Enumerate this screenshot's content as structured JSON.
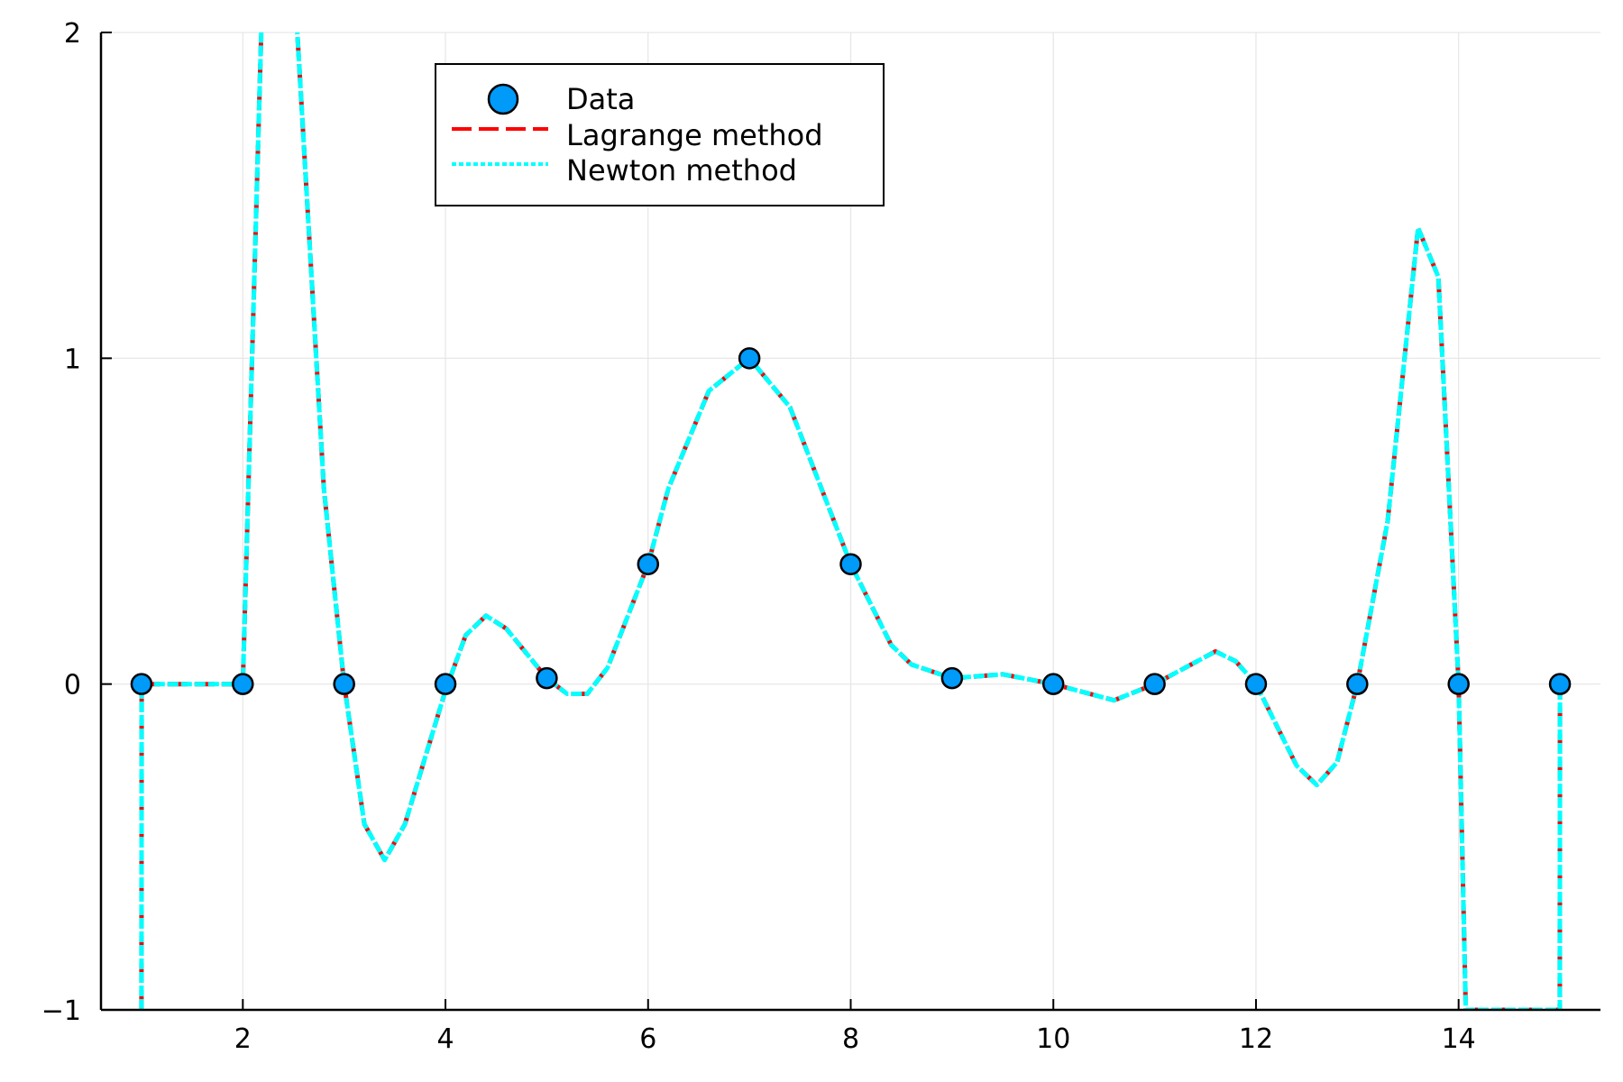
{
  "chart_data": {
    "type": "line",
    "title": "",
    "xlabel": "",
    "ylabel": "",
    "xlim": [
      0.6,
      15.4
    ],
    "ylim": [
      -1,
      2
    ],
    "x_ticks": [
      2,
      4,
      6,
      8,
      10,
      12,
      14
    ],
    "y_ticks": [
      -1,
      0,
      1,
      2
    ],
    "y_tick_labels": [
      "−1",
      "0",
      "1",
      "2"
    ],
    "grid": true,
    "legend_position": "top-center",
    "series": [
      {
        "name": "Data",
        "kind": "scatter",
        "color": "#009af9",
        "x": [
          1,
          2,
          3,
          4,
          5,
          6,
          7,
          8,
          9,
          10,
          11,
          12,
          13,
          14,
          15
        ],
        "y": [
          0.0,
          0.0,
          0.0,
          0.0,
          0.018,
          0.368,
          1.0,
          0.368,
          0.018,
          0.0,
          0.0,
          0.0,
          0.0,
          0.0,
          0.0
        ]
      },
      {
        "name": "Lagrange method",
        "kind": "line",
        "style": "dashed",
        "color": "#ff0000",
        "x": [
          1,
          1.001,
          2,
          2.2,
          2.5,
          2.8,
          3,
          3.2,
          3.4,
          3.6,
          4,
          4.2,
          4.4,
          4.6,
          5,
          5.2,
          5.4,
          5.6,
          6,
          6.2,
          6.6,
          7,
          7.4,
          8,
          8.4,
          8.6,
          9,
          9.5,
          10,
          10.6,
          11,
          11.6,
          11.8,
          12,
          12.4,
          12.6,
          12.8,
          13,
          13.3,
          13.6,
          13.8,
          14,
          14.07,
          14.999,
          15
        ],
        "y": [
          -1.0,
          0.0,
          0.0,
          2.2,
          2.2,
          0.6,
          0.0,
          -0.43,
          -0.54,
          -0.43,
          -0.02,
          0.15,
          0.21,
          0.17,
          0.018,
          -0.03,
          -0.03,
          0.05,
          0.368,
          0.6,
          0.9,
          1.0,
          0.85,
          0.368,
          0.12,
          0.06,
          0.018,
          0.03,
          0.0,
          -0.05,
          0.0,
          0.1,
          0.07,
          0.0,
          -0.25,
          -0.31,
          -0.24,
          0.0,
          0.5,
          1.4,
          1.25,
          0.0,
          -1.0,
          -1.0,
          0.0
        ]
      },
      {
        "name": "Newton method",
        "kind": "line",
        "style": "dotted",
        "color": "#00ffff",
        "x": [
          1,
          1.001,
          2,
          2.2,
          2.5,
          2.8,
          3,
          3.2,
          3.4,
          3.6,
          4,
          4.2,
          4.4,
          4.6,
          5,
          5.2,
          5.4,
          5.6,
          6,
          6.2,
          6.6,
          7,
          7.4,
          8,
          8.4,
          8.6,
          9,
          9.5,
          10,
          10.6,
          11,
          11.6,
          11.8,
          12,
          12.4,
          12.6,
          12.8,
          13,
          13.3,
          13.6,
          13.8,
          14,
          14.07,
          14.999,
          15
        ],
        "y": [
          -1.0,
          0.0,
          0.0,
          2.2,
          2.2,
          0.6,
          0.0,
          -0.43,
          -0.54,
          -0.43,
          -0.02,
          0.15,
          0.21,
          0.17,
          0.018,
          -0.03,
          -0.03,
          0.05,
          0.368,
          0.6,
          0.9,
          1.0,
          0.85,
          0.368,
          0.12,
          0.06,
          0.018,
          0.03,
          0.0,
          -0.05,
          0.0,
          0.1,
          0.07,
          0.0,
          -0.25,
          -0.31,
          -0.24,
          0.0,
          0.5,
          1.4,
          1.25,
          0.0,
          -1.0,
          -1.0,
          0.0
        ]
      }
    ]
  }
}
